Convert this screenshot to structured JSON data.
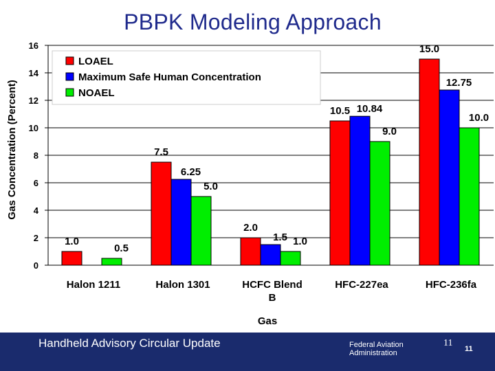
{
  "slide": {
    "title": "PBPK Modeling Approach"
  },
  "footer": {
    "left_text": "Handheld Advisory Circular Update",
    "agency_line1": "Federal Aviation",
    "agency_line2": "Administration",
    "page_number_a": "11",
    "page_number_b": "11"
  },
  "chart_data": {
    "type": "bar",
    "title": "",
    "xlabel": "Gas",
    "ylabel": "Gas Concentration (Percent)",
    "ylim": [
      0,
      16
    ],
    "yticks": [
      0,
      2,
      4,
      6,
      8,
      10,
      12,
      14,
      16
    ],
    "ytick_labels": [
      "0",
      "2",
      "4",
      "6",
      "8",
      "10",
      "12",
      "14",
      "16"
    ],
    "categories": [
      "Halon 1211",
      "Halon 1301",
      "HCFC Blend B",
      "HFC-227ea",
      "HFC-236fa"
    ],
    "category_label_lines": [
      [
        "Halon 1211"
      ],
      [
        "Halon 1301"
      ],
      [
        "HCFC Blend",
        "B"
      ],
      [
        "HFC-227ea"
      ],
      [
        "HFC-236fa"
      ]
    ],
    "series": [
      {
        "name": "LOAEL",
        "color": "#ff0000",
        "values": [
          1.0,
          7.5,
          2.0,
          10.5,
          15.0
        ],
        "labels": [
          "1.0",
          "7.5",
          "2.0",
          "10.5",
          "15.0"
        ]
      },
      {
        "name": "Maximum Safe Human Concentration",
        "color": "#0000ff",
        "values": [
          null,
          6.25,
          1.5,
          10.84,
          12.75
        ],
        "labels": [
          "",
          "6.25",
          "1.5",
          "10.84",
          "12.75"
        ]
      },
      {
        "name": "NOAEL",
        "color": "#00ee00",
        "values": [
          0.5,
          5.0,
          1.0,
          9.0,
          10.0
        ],
        "labels": [
          "0.5",
          "5.0",
          "1.0",
          "9.0",
          "10.0"
        ]
      }
    ],
    "legend_position": "top-left",
    "grid": true
  }
}
